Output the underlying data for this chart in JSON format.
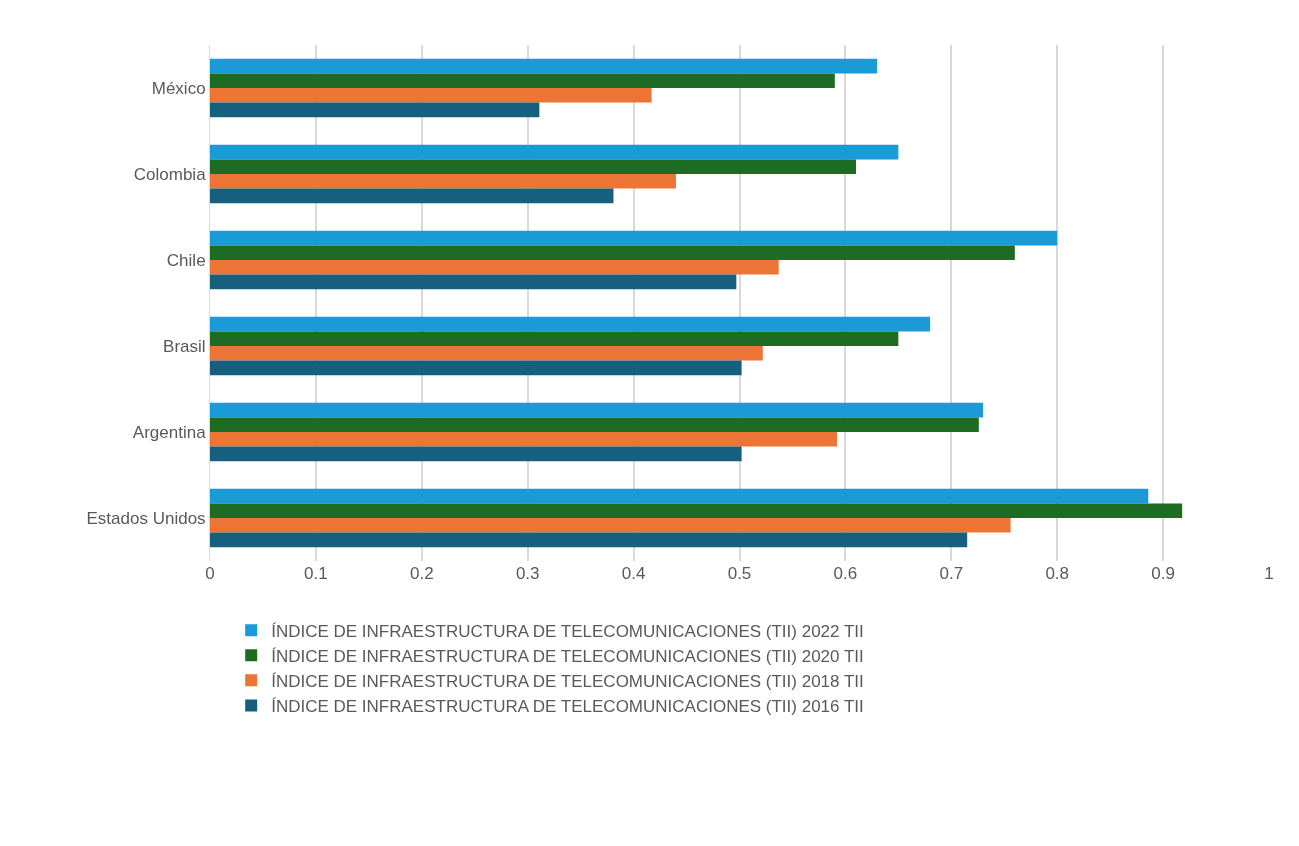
{
  "chart_data": {
    "type": "bar",
    "orientation": "horizontal",
    "categories": [
      "México",
      "Colombia",
      "Chile",
      "Brasil",
      "Argentina",
      "Estados Unidos"
    ],
    "series": [
      {
        "name": "ÍNDICE DE INFRAESTRUCTURA DE TELECOMUNICACIONES (TII) 2022 TII",
        "color": "#1a9ad6",
        "values": [
          0.63,
          0.65,
          0.8,
          0.68,
          0.73,
          0.886
        ]
      },
      {
        "name": "ÍNDICE DE INFRAESTRUCTURA DE TELECOMUNICACIONES (TII) 2020 TII",
        "color": "#1e6b24",
        "values": [
          0.59,
          0.61,
          0.76,
          0.65,
          0.726,
          0.918
        ]
      },
      {
        "name": "ÍNDICE DE INFRAESTRUCTURA DE TELECOMUNICACIONES (TII) 2018 TII",
        "color": "#ec7434",
        "values": [
          0.417,
          0.44,
          0.537,
          0.522,
          0.592,
          0.756
        ]
      },
      {
        "name": "ÍNDICE DE INFRAESTRUCTURA DE TELECOMUNICACIONES (TII) 2016 TII",
        "color": "#16607f",
        "values": [
          0.311,
          0.381,
          0.497,
          0.502,
          0.502,
          0.715
        ]
      }
    ],
    "xlim": [
      0,
      1
    ],
    "xticks": [
      0,
      0.1,
      0.2,
      0.3,
      0.4,
      0.5,
      0.6,
      0.7,
      0.8,
      0.9,
      1
    ],
    "grid": "x",
    "legend": "bottom"
  }
}
